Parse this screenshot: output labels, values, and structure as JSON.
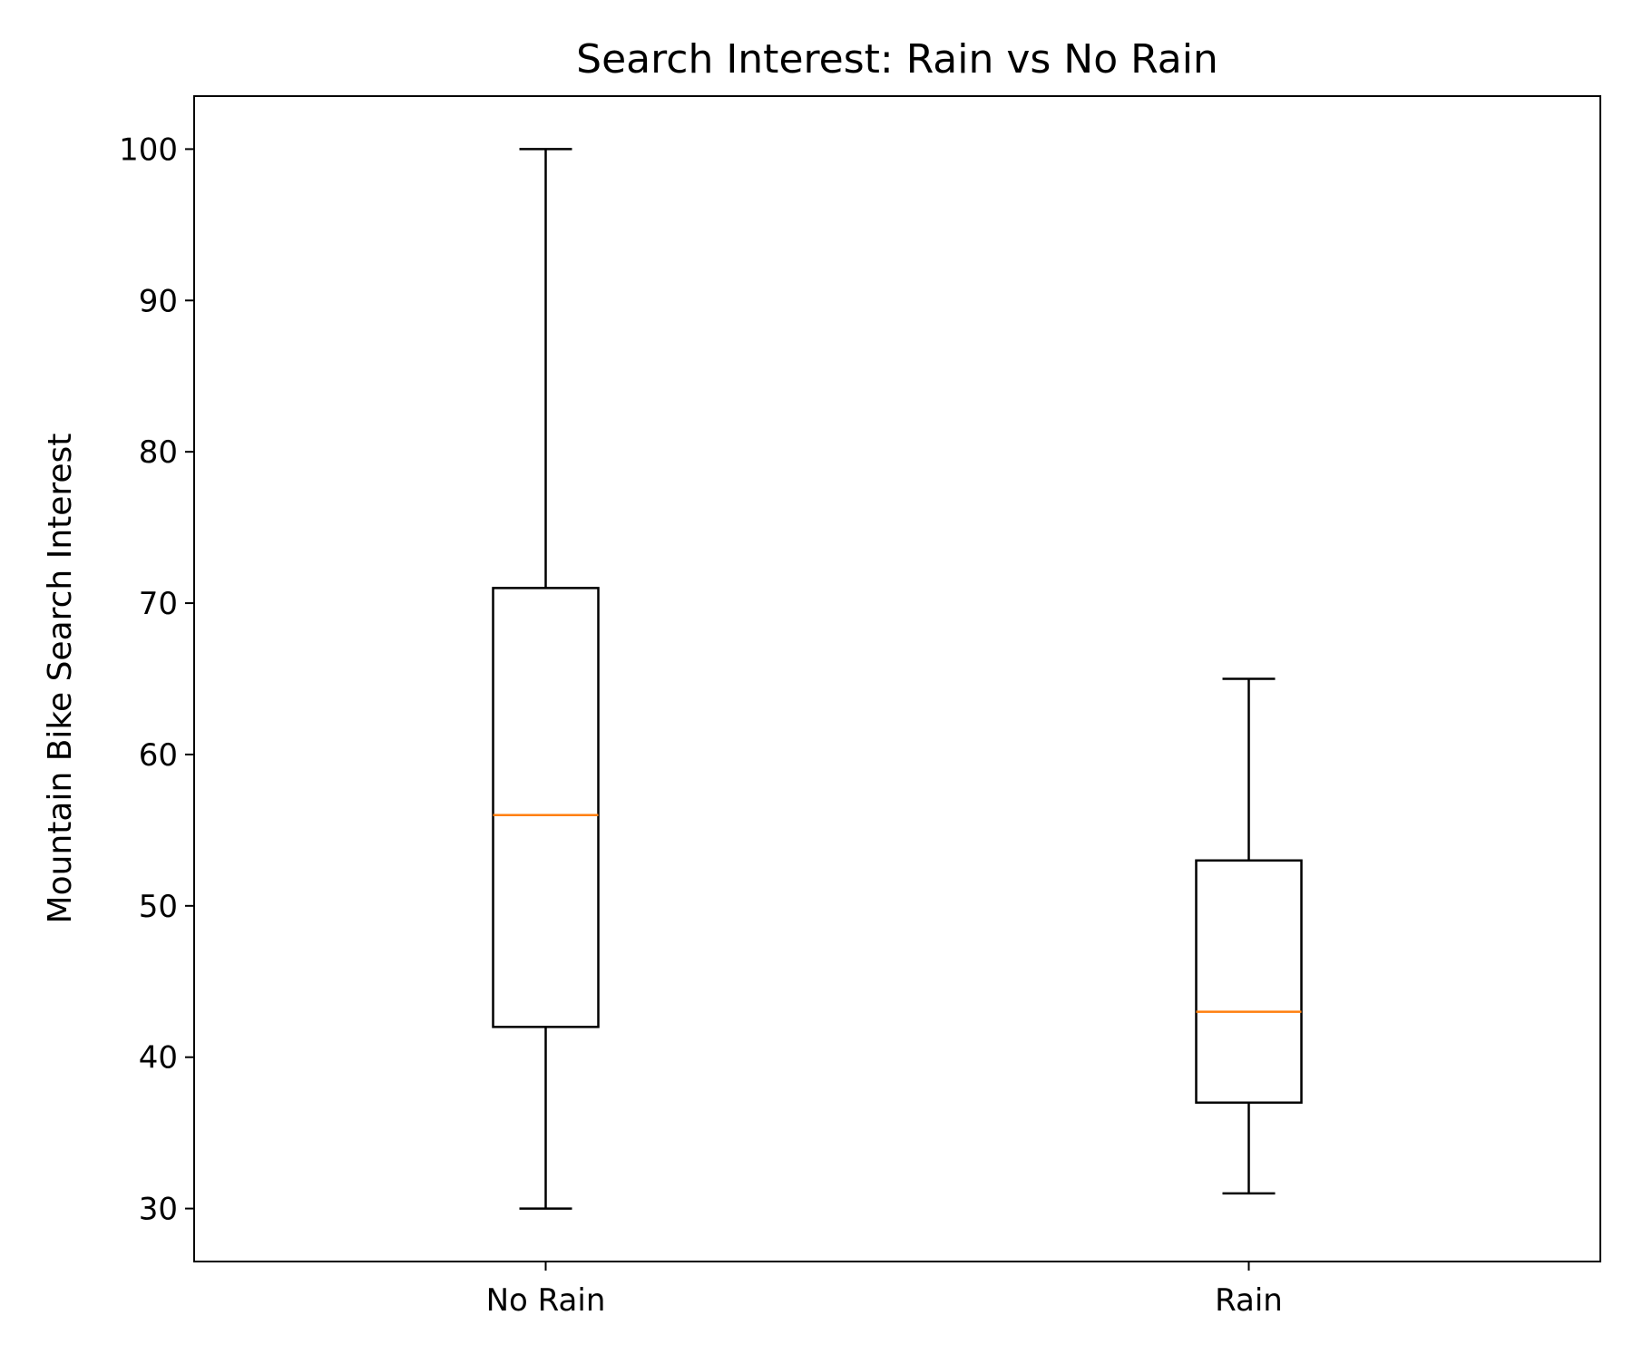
{
  "chart_data": {
    "type": "box",
    "title": "Search Interest: Rain vs No Rain",
    "xlabel": "",
    "ylabel": "Mountain Bike Search Interest",
    "categories": [
      "No Rain",
      "Rain"
    ],
    "boxes": [
      {
        "category": "No Rain",
        "whisker_low": 30,
        "q1": 42,
        "median": 56,
        "q3": 71,
        "whisker_high": 100
      },
      {
        "category": "Rain",
        "whisker_low": 31,
        "q1": 37,
        "median": 43,
        "q3": 53,
        "whisker_high": 65
      }
    ],
    "ylim": [
      26.5,
      103.5
    ],
    "yticks": [
      30,
      40,
      50,
      60,
      70,
      80,
      90,
      100
    ],
    "grid": false,
    "legend": "none",
    "colors": {
      "box": "#000000",
      "median": "#ff7f0e"
    }
  }
}
